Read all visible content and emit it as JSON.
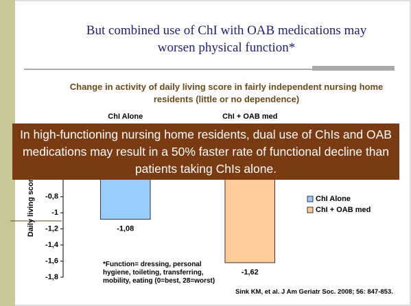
{
  "slide_title": "But combined use of ChI with OAB medications may worsen physical function*",
  "callout": "In high-functioning nursing home residents, dual use of ChIs and OAB medications may result in a 50% faster rate of functional decline than patients taking ChIs alone.",
  "footnote": "*Function= dressing, personal hygiene, toileting, transferring, mobility, eating (0=best, 28=worst)",
  "citation": "Sink KM, et al. J Am Geriatr Soc. 2008; 56: 847-853.",
  "chart_data": {
    "type": "bar",
    "title": "Change in activity of daily living score in fairly independent nursing home residents (little or no dependence)",
    "categories": [
      "ChI Alone",
      "ChI + OAB med"
    ],
    "series": [
      {
        "name": "ChI Alone",
        "color": "#99ccff",
        "values": [
          -1.08,
          null
        ],
        "value_labels": [
          "-1,08",
          null
        ]
      },
      {
        "name": "ChI + OAB med",
        "color": "#ffcc99",
        "values": [
          null,
          -1.62
        ],
        "value_labels": [
          null,
          "-1,62"
        ]
      }
    ],
    "ylabel": "Daily living score",
    "ylim": [
      -1.8,
      0
    ],
    "yticks": [
      {
        "value": -0.8,
        "label": "-0,8"
      },
      -1,
      {
        "value": -1.2,
        "label": "-1,2"
      },
      {
        "value": -1.4,
        "label": "-1,4"
      },
      {
        "value": -1.6,
        "label": "-1,6"
      },
      {
        "value": -1.8,
        "label": "-1,8"
      }
    ],
    "legend": "right"
  }
}
